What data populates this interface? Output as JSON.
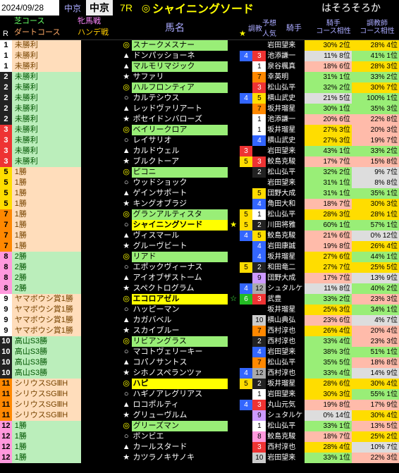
{
  "header": {
    "date": "2024/09/28",
    "kaijo_label": "中京",
    "kaisai": "中京",
    "race_r": "7R",
    "pick_mark": "◎",
    "pick_name": "シャイニングソード",
    "pick_note": "はそろそろか"
  },
  "cols": {
    "r": "R",
    "turf": "芝コース",
    "dirt": "ダートコース",
    "mare": "牝馬戦",
    "handicap": "ハンデ戦",
    "horse": "馬名",
    "star": "★",
    "train": "調教",
    "ninki": "予想人気",
    "jockey": "騎手",
    "jockey2": "騎手",
    "comp1a": "コース相性",
    "comp2a": "調教師",
    "comp2b": "コース相性"
  },
  "rows": [
    {
      "r": 1,
      "rf": "f1",
      "race": "未勝利",
      "rbg": "dirt-bg",
      "mk": "◎",
      "mkc": "mk-dbl",
      "horse": "スナークメスナー",
      "hl": "hl-green",
      "star": "",
      "n1": "",
      "n2": "",
      "jockey": "岩田望来",
      "c1": "30% 2位",
      "c1c": "pct-mid",
      "c2": "28% 4位",
      "c2c": "pct-mid"
    },
    {
      "r": 1,
      "rf": "f1",
      "race": "未勝利",
      "rbg": "dirt-bg",
      "mk": "▲",
      "mkc": "mk-tri",
      "horse": "ドンパッショーネ",
      "hl": "",
      "star": "",
      "n1": "4",
      "n1c": "n4",
      "n2": "3",
      "n2c": "n3",
      "jockey": "池添謙一",
      "c1": "11% 8位",
      "c1c": "pct-vlo",
      "c2": "41% 1位",
      "c2c": "pct-hi"
    },
    {
      "r": 1,
      "rf": "f1",
      "race": "未勝利",
      "rbg": "dirt-bg",
      "mk": "▲",
      "mkc": "mk-tri",
      "horse": "マルモリマジック",
      "hl": "hl-green",
      "star": "",
      "n1": "",
      "n2": "1",
      "n2c": "n1",
      "jockey": "泉谷楓真",
      "c1": "18% 6位",
      "c1c": "pct-lo",
      "c2": "28% 3位",
      "c2c": "pct-mid"
    },
    {
      "r": 2,
      "rf": "f2",
      "race": "未勝利",
      "rbg": "turf-bg",
      "mk": "★",
      "mkc": "mk-star",
      "horse": "サファリ",
      "hl": "",
      "star": "",
      "n1": "",
      "n2": "7",
      "n2c": "n7",
      "jockey": "幸英明",
      "c1": "31% 1位",
      "c1c": "pct-hi",
      "c2": "33% 2位",
      "c2c": "pct-hi"
    },
    {
      "r": 2,
      "rf": "f2",
      "race": "未勝利",
      "rbg": "turf-bg",
      "mk": "◎",
      "mkc": "mk-dbl",
      "horse": "ハルフロンティア",
      "hl": "hl-green",
      "star": "",
      "n1": "",
      "n2": "3",
      "n2c": "n3",
      "jockey": "松山弘平",
      "c1": "32% 2位",
      "c1c": "pct-hi",
      "c2": "30% 7位",
      "c2c": "pct-mid"
    },
    {
      "r": 2,
      "rf": "f2",
      "race": "未勝利",
      "rbg": "turf-bg",
      "mk": "○",
      "mkc": "mk-sgl",
      "horse": "カルテシウス",
      "hl": "",
      "star": "",
      "n1": "4",
      "n1c": "n4",
      "n2": "5",
      "n2c": "n5",
      "jockey": "横山武史",
      "c1": "21% 5位",
      "c1c": "pct-vlo",
      "c2": "100% 1位",
      "c2c": "pct-hi"
    },
    {
      "r": 2,
      "rf": "f2",
      "race": "未勝利",
      "rbg": "turf-bg",
      "mk": "▲",
      "mkc": "mk-tri",
      "horse": "レッドヴァリアート",
      "hl": "",
      "star": "",
      "n1": "",
      "n2": "7",
      "n2c": "n7",
      "jockey": "坂井瑠星",
      "c1": "30% 1位",
      "c1c": "pct-hi",
      "c2": "35% 3位",
      "c2c": "pct-hi"
    },
    {
      "r": 2,
      "rf": "f2",
      "race": "未勝利",
      "rbg": "turf-bg",
      "mk": "★",
      "mkc": "mk-star",
      "horse": "ポセイドンバローズ",
      "hl": "",
      "star": "",
      "n1": "",
      "n2": "1",
      "n2c": "n1",
      "jockey": "池添謙一",
      "c1": "20% 6位",
      "c1c": "pct-lo",
      "c2": "22% 8位",
      "c2c": "pct-lo"
    },
    {
      "r": 3,
      "rf": "f3",
      "race": "未勝利",
      "rbg": "turf-bg",
      "mk": "◎",
      "mkc": "mk-dbl",
      "horse": "ベイリークロア",
      "hl": "hl-green",
      "star": "",
      "n1": "",
      "n2": "1",
      "n2c": "n1",
      "jockey": "坂井瑠星",
      "c1": "27% 3位",
      "c1c": "pct-mid",
      "c2": "20% 3位",
      "c2c": "pct-lo"
    },
    {
      "r": 3,
      "rf": "f3",
      "race": "未勝利",
      "rbg": "turf-bg",
      "mk": "○",
      "mkc": "mk-sgl",
      "horse": "レイサリオ",
      "hl": "",
      "star": "",
      "n1": "",
      "n2": "4",
      "n2c": "n4",
      "jockey": "横山武史",
      "c1": "27% 3位",
      "c1c": "pct-mid",
      "c2": "19% 7位",
      "c2c": "pct-lo"
    },
    {
      "r": 3,
      "rf": "f3",
      "race": "未勝利",
      "rbg": "turf-bg",
      "mk": "▲",
      "mkc": "mk-tri",
      "horse": "カルドウェル",
      "hl": "",
      "star": "",
      "n1": "3",
      "n1c": "n3",
      "n2": "",
      "jockey": "岩田望来",
      "c1": "43% 1位",
      "c1c": "pct-hi",
      "c2": "33% 2位",
      "c2c": "pct-hi"
    },
    {
      "r": 3,
      "rf": "f3",
      "race": "未勝利",
      "rbg": "turf-bg",
      "mk": "★",
      "mkc": "mk-star",
      "horse": "ブルクトーア",
      "hl": "",
      "star": "",
      "n1": "5",
      "n1c": "n5",
      "n2": "3",
      "n2c": "n3",
      "jockey": "鮫島克駿",
      "c1": "17% 7位",
      "c1c": "pct-lo",
      "c2": "15% 8位",
      "c2c": "pct-lo"
    },
    {
      "r": 5,
      "rf": "f5",
      "race": "1勝",
      "rbg": "dirt-bg",
      "mk": "◎",
      "mkc": "mk-dbl",
      "horse": "ピコニ",
      "hl": "hl-green",
      "star": "",
      "n1": "",
      "n2": "2",
      "n2c": "n2",
      "jockey": "松山弘平",
      "c1": "32% 2位",
      "c1c": "pct-hi",
      "c2": "9% 7位",
      "c2c": "pct-vlo"
    },
    {
      "r": 5,
      "rf": "f5",
      "race": "1勝",
      "rbg": "dirt-bg",
      "mk": "○",
      "mkc": "mk-sgl",
      "horse": "ウッドショック",
      "hl": "",
      "star": "",
      "n1": "",
      "n2": "",
      "jockey": "岩田望来",
      "c1": "31% 1位",
      "c1c": "pct-hi",
      "c2": "8% 8位",
      "c2c": "pct-vlo"
    },
    {
      "r": 5,
      "rf": "f5",
      "race": "1勝",
      "rbg": "dirt-bg",
      "mk": "▲",
      "mkc": "mk-tri",
      "horse": "ゲインサポート",
      "hl": "",
      "star": "",
      "n1": "",
      "n2": "5",
      "n2c": "n5",
      "jockey": "団野大成",
      "c1": "31% 1位",
      "c1c": "pct-hi",
      "c2": "35% 1位",
      "c2c": "pct-hi"
    },
    {
      "r": 5,
      "rf": "f5",
      "race": "1勝",
      "rbg": "dirt-bg",
      "mk": "★",
      "mkc": "mk-star",
      "horse": "キングオブラジ",
      "hl": "",
      "star": "",
      "n1": "",
      "n2": "4",
      "n2c": "n4",
      "jockey": "角田大和",
      "c1": "18% 7位",
      "c1c": "pct-lo",
      "c2": "30% 3位",
      "c2c": "pct-mid"
    },
    {
      "r": 7,
      "rf": "f7",
      "race": "1勝",
      "rbg": "dirt-bg",
      "mk": "◎",
      "mkc": "mk-dbl",
      "horse": "グランアルティスタ",
      "hl": "hl-green",
      "star": "",
      "n1": "5",
      "n1c": "n5",
      "n2": "1",
      "n2c": "n1",
      "jockey": "松山弘平",
      "c1": "28% 3位",
      "c1c": "pct-mid",
      "c2": "28% 1位",
      "c2c": "pct-mid"
    },
    {
      "r": 7,
      "rf": "f7",
      "race": "1勝",
      "rbg": "dirt-bg",
      "mk": "○",
      "mkc": "mk-sgl",
      "horse": "シャイニングソード",
      "hl": "hl-yellow",
      "star": "★",
      "stc": "st-yellow",
      "n1": "5",
      "n1c": "n5",
      "n2": "2",
      "n2c": "n2",
      "jockey": "川田将雅",
      "c1": "60% 1位",
      "c1c": "pct-hi",
      "c2": "57% 1位",
      "c2c": "pct-hi"
    },
    {
      "r": 7,
      "rf": "f7",
      "race": "1勝",
      "rbg": "dirt-bg",
      "mk": "▲",
      "mkc": "mk-tri",
      "horse": "ヴィスマール",
      "hl": "",
      "star": "",
      "n1": "4",
      "n1c": "n4",
      "n2": "5",
      "n2c": "n5",
      "jockey": "鮫島克駿",
      "c1": "21% 6位",
      "c1c": "pct-lo",
      "c2": "0% 12位",
      "c2c": "pct-vlo"
    },
    {
      "r": 7,
      "rf": "f7",
      "race": "1勝",
      "rbg": "dirt-bg",
      "mk": "★",
      "mkc": "mk-star",
      "horse": "グルーヴビート",
      "hl": "",
      "star": "",
      "n1": "",
      "n2": "4",
      "n2c": "n4",
      "jockey": "岩田康誠",
      "c1": "19% 8位",
      "c1c": "pct-lo",
      "c2": "26% 4位",
      "c2c": "pct-mid"
    },
    {
      "r": 8,
      "rf": "f8",
      "race": "2勝",
      "rbg": "turf-bg",
      "mk": "◎",
      "mkc": "mk-dbl",
      "horse": "リアド",
      "hl": "hl-green",
      "star": "",
      "n1": "",
      "n2": "4",
      "n2c": "n4",
      "jockey": "坂井瑠星",
      "c1": "27% 6位",
      "c1c": "pct-mid",
      "c2": "44% 1位",
      "c2c": "pct-hi"
    },
    {
      "r": 8,
      "rf": "f8",
      "race": "2勝",
      "rbg": "turf-bg",
      "mk": "○",
      "mkc": "mk-sgl",
      "horse": "エポックヴィーナス",
      "hl": "",
      "star": "",
      "n1": "5",
      "n1c": "n5",
      "n2": "2",
      "n2c": "n2",
      "jockey": "和田竜二",
      "c1": "27% 7位",
      "c1c": "pct-mid",
      "c2": "25% 5位",
      "c2c": "pct-mid"
    },
    {
      "r": 8,
      "rf": "f8",
      "race": "2勝",
      "rbg": "turf-bg",
      "mk": "▲",
      "mkc": "mk-tri",
      "horse": "アイオブザストーム",
      "hl": "",
      "star": "",
      "n1": "",
      "n2": "9",
      "n2c": "n9",
      "jockey": "団野大成",
      "c1": "17% 7位",
      "c1c": "pct-lo",
      "c2": "13% 9位",
      "c2c": "pct-vlo"
    },
    {
      "r": 8,
      "rf": "f8",
      "race": "2勝",
      "rbg": "turf-bg",
      "mk": "★",
      "mkc": "mk-star",
      "horse": "スペクトログラム",
      "hl": "",
      "star": "",
      "n1": "4",
      "n1c": "n4",
      "n2": "12",
      "n2c": "n12",
      "jockey": "シュタルケ",
      "c1": "11% 8位",
      "c1c": "pct-vlo",
      "c2": "40% 2位",
      "c2c": "pct-hi"
    },
    {
      "r": 9,
      "rf": "f1",
      "race": "ヤマボウシ賞1勝",
      "rbg": "dirt-bg",
      "mk": "◎",
      "mkc": "mk-dbl",
      "horse": "エコロアゼル",
      "hl": "hl-yellow",
      "star": "☆",
      "stc": "st-green",
      "n1": "6",
      "n1c": "n6",
      "n2": "3",
      "n2c": "n3",
      "jockey": "武豊",
      "c1": "33% 2位",
      "c1c": "pct-hi",
      "c2": "23% 3位",
      "c2c": "pct-lo"
    },
    {
      "r": 9,
      "rf": "f1",
      "race": "ヤマボウシ賞1勝",
      "rbg": "dirt-bg",
      "mk": "○",
      "mkc": "mk-sgl",
      "horse": "ハッピーマン",
      "hl": "",
      "star": "",
      "n1": "",
      "n2": "",
      "jockey": "坂井瑠星",
      "c1": "25% 3位",
      "c1c": "pct-mid",
      "c2": "34% 1位",
      "c2c": "pct-hi"
    },
    {
      "r": 9,
      "rf": "f1",
      "race": "ヤマボウシ賞1勝",
      "rbg": "dirt-bg",
      "mk": "▲",
      "mkc": "mk-tri",
      "horse": "カガバベル",
      "hl": "",
      "star": "",
      "n1": "",
      "n2": "10",
      "n2c": "n10",
      "jockey": "横山典弘",
      "c1": "23% 6位",
      "c1c": "pct-lo",
      "c2": "4% 7位",
      "c2c": "pct-vlo"
    },
    {
      "r": 9,
      "rf": "f1",
      "race": "ヤマボウシ賞1勝",
      "rbg": "dirt-bg",
      "mk": "★",
      "mkc": "mk-star",
      "horse": "スカイブルー",
      "hl": "",
      "star": "",
      "n1": "",
      "n2": "7",
      "n2c": "n7",
      "jockey": "西村淳也",
      "c1": "26% 4位",
      "c1c": "pct-mid",
      "c2": "20% 4位",
      "c2c": "pct-lo"
    },
    {
      "r": 10,
      "rf": "f2",
      "race": "高山S3勝",
      "rbg": "turf-bg",
      "mk": "◎",
      "mkc": "mk-dbl",
      "horse": "リビアングラス",
      "hl": "hl-green",
      "star": "",
      "n1": "",
      "n2": "2",
      "n2c": "n2",
      "jockey": "西村淳也",
      "c1": "33% 4位",
      "c1c": "pct-hi",
      "c2": "23% 3位",
      "c2c": "pct-lo"
    },
    {
      "r": 10,
      "rf": "f2",
      "race": "高山S3勝",
      "rbg": "turf-bg",
      "mk": "○",
      "mkc": "mk-sgl",
      "horse": "マコトヴェリーキー",
      "hl": "",
      "star": "",
      "n1": "",
      "n2": "4",
      "n2c": "n4",
      "jockey": "岩田望来",
      "c1": "38% 3位",
      "c1c": "pct-hi",
      "c2": "51% 1位",
      "c2c": "pct-hi"
    },
    {
      "r": 10,
      "rf": "f2",
      "race": "高山S3勝",
      "rbg": "turf-bg",
      "mk": "▲",
      "mkc": "mk-tri",
      "horse": "コパノサントス",
      "hl": "",
      "star": "",
      "n1": "",
      "n2": "7",
      "n2c": "n7",
      "jockey": "松山弘平",
      "c1": "35% 5位",
      "c1c": "pct-hi",
      "c2": "18% 8位",
      "c2c": "pct-lo"
    },
    {
      "r": 10,
      "rf": "f2",
      "race": "高山S3勝",
      "rbg": "turf-bg",
      "mk": "★",
      "mkc": "mk-star",
      "horse": "シホノスペランツァ",
      "hl": "",
      "star": "",
      "n1": "4",
      "n1c": "n4",
      "n2": "12",
      "n2c": "n12",
      "jockey": "西村淳也",
      "c1": "33% 4位",
      "c1c": "pct-hi",
      "c2": "14% 9位",
      "c2c": "pct-vlo"
    },
    {
      "r": 11,
      "rf": "f7",
      "race": "シリウスSGⅢH",
      "rbg": "dirt-bg",
      "mk": "◎",
      "mkc": "mk-dbl",
      "horse": "ハピ",
      "hl": "hl-yellow",
      "star": "",
      "n1": "5",
      "n1c": "n5",
      "n2": "2",
      "n2c": "n2",
      "jockey": "坂井瑠星",
      "c1": "28% 6位",
      "c1c": "pct-mid",
      "c2": "30% 4位",
      "c2c": "pct-mid"
    },
    {
      "r": 11,
      "rf": "f7",
      "race": "シリウスSGⅢH",
      "rbg": "dirt-bg",
      "mk": "○",
      "mkc": "mk-sgl",
      "horse": "ハギノアレグリアス",
      "hl": "",
      "star": "",
      "n1": "",
      "n2": "1",
      "n2c": "n1",
      "jockey": "岩田望来",
      "c1": "30% 3位",
      "c1c": "pct-mid",
      "c2": "55% 1位",
      "c2c": "pct-hi"
    },
    {
      "r": 11,
      "rf": "f7",
      "race": "シリウスSGⅢH",
      "rbg": "dirt-bg",
      "mk": "▲",
      "mkc": "mk-tri",
      "horse": "ロコポルティ",
      "hl": "",
      "star": "",
      "n1": "4",
      "n1c": "n4",
      "n2": "3",
      "n2c": "n3",
      "jockey": "丸山元気",
      "c1": "19% 8位",
      "c1c": "pct-lo",
      "c2": "17% 9位",
      "c2c": "pct-lo"
    },
    {
      "r": 11,
      "rf": "f7",
      "race": "シリウスSGⅢH",
      "rbg": "dirt-bg",
      "mk": "★",
      "mkc": "mk-star",
      "horse": "グリューヴルム",
      "hl": "",
      "star": "",
      "n1": "",
      "n2": "9",
      "n2c": "n9",
      "jockey": "シュタルケ",
      "c1": "0% 14位",
      "c1c": "pct-vlo",
      "c2": "30% 4位",
      "c2c": "pct-mid"
    },
    {
      "r": 12,
      "rf": "f8",
      "race": "1勝",
      "rbg": "turf-bg",
      "mk": "◎",
      "mkc": "mk-dbl",
      "horse": "グリーズマン",
      "hl": "hl-green",
      "star": "",
      "n1": "",
      "n2": "1",
      "n2c": "n1",
      "jockey": "松山弘平",
      "c1": "33% 1位",
      "c1c": "pct-hi",
      "c2": "13% 5位",
      "c2c": "pct-lo"
    },
    {
      "r": 12,
      "rf": "f8",
      "race": "1勝",
      "rbg": "turf-bg",
      "mk": "○",
      "mkc": "mk-sgl",
      "horse": "ボンビエ",
      "hl": "",
      "star": "",
      "n1": "",
      "n2": "8",
      "n2c": "n8",
      "jockey": "鮫島克駿",
      "c1": "18% 7位",
      "c1c": "pct-lo",
      "c2": "25% 2位",
      "c2c": "pct-mid"
    },
    {
      "r": 12,
      "rf": "f8",
      "race": "1勝",
      "rbg": "turf-bg",
      "mk": "▲",
      "mkc": "mk-tri",
      "horse": "カールスタード",
      "hl": "",
      "star": "",
      "n1": "",
      "n2": "3",
      "n2c": "n3",
      "jockey": "西村淳也",
      "c1": "28% 4位",
      "c1c": "pct-mid",
      "c2": "10% 7位",
      "c2c": "pct-vlo"
    },
    {
      "r": 12,
      "rf": "f8",
      "race": "1勝",
      "rbg": "turf-bg",
      "mk": "★",
      "mkc": "mk-star",
      "horse": "カツラノキサノキ",
      "hl": "",
      "star": "",
      "n1": "",
      "n2": "10",
      "n2c": "n10",
      "jockey": "岩田望来",
      "c1": "33% 1位",
      "c1c": "pct-hi",
      "c2": "22% 3位",
      "c2c": "pct-lo"
    }
  ]
}
